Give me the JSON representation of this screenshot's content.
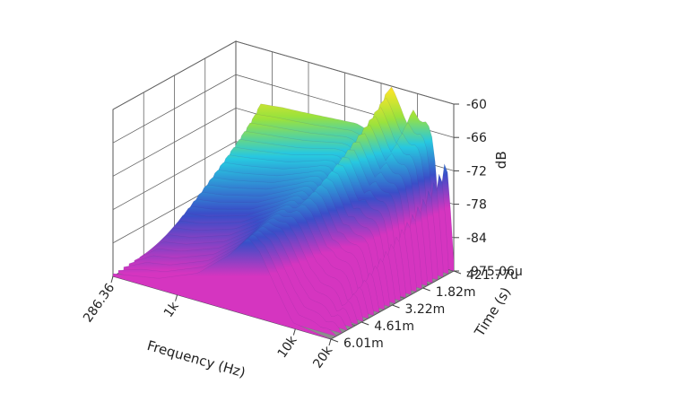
{
  "chart_data": {
    "type": "waterfall-3d",
    "xlabel": "Frequency (Hz)",
    "ylabel": "Time (s)",
    "zlabel": "dB",
    "x_ticks": [
      "286.36",
      "1k",
      "10k",
      "20k"
    ],
    "y_ticks": [
      "421.77u",
      "1.82m",
      "3.22m",
      "4.61m",
      "6.01m"
    ],
    "z_ticks": [
      "-60",
      "-66",
      "-72",
      "-78",
      "-84",
      "-975.06u"
    ],
    "x_scale": "log",
    "x_range": [
      286.36,
      20000
    ],
    "y_range_s": [
      0.00042177,
      0.00601
    ],
    "z_range_db": [
      -90,
      -60
    ],
    "grid": true,
    "colormap": [
      "#d535c0",
      "#3a4ec8",
      "#27c8e0",
      "#9be23c",
      "#f4e52a",
      "#f39a1f",
      "#e8261f"
    ],
    "series": [
      {
        "time": "421.77u",
        "points": [
          {
            "freq": 286.36,
            "db": -88
          },
          {
            "freq": 450,
            "db": -70
          },
          {
            "freq": 700,
            "db": -69.5
          },
          {
            "freq": 1000,
            "db": -69.3
          },
          {
            "freq": 2000,
            "db": -68.8
          },
          {
            "freq": 3000,
            "db": -68.5
          },
          {
            "freq": 3600,
            "db": -69
          },
          {
            "freq": 4200,
            "db": -72
          },
          {
            "freq": 5200,
            "db": -62
          },
          {
            "freq": 6000,
            "db": -60
          },
          {
            "freq": 7000,
            "db": -63
          },
          {
            "freq": 8000,
            "db": -66
          },
          {
            "freq": 9000,
            "db": -63
          },
          {
            "freq": 10500,
            "db": -65
          },
          {
            "freq": 12000,
            "db": -64.5
          },
          {
            "freq": 13500,
            "db": -68
          },
          {
            "freq": 15000,
            "db": -80
          },
          {
            "freq": 16500,
            "db": -71
          },
          {
            "freq": 18000,
            "db": -73
          },
          {
            "freq": 20000,
            "db": -88
          }
        ]
      },
      {
        "time": "6.01m",
        "points": [
          {
            "freq": 286.36,
            "db": -89.5
          },
          {
            "freq": 700,
            "db": -88
          },
          {
            "freq": 1500,
            "db": -85
          },
          {
            "freq": 2800,
            "db": -80
          },
          {
            "freq": 4000,
            "db": -76
          },
          {
            "freq": 5000,
            "db": -78
          },
          {
            "freq": 7000,
            "db": -84
          },
          {
            "freq": 9500,
            "db": -89
          },
          {
            "freq": 20000,
            "db": -90
          }
        ]
      }
    ]
  }
}
